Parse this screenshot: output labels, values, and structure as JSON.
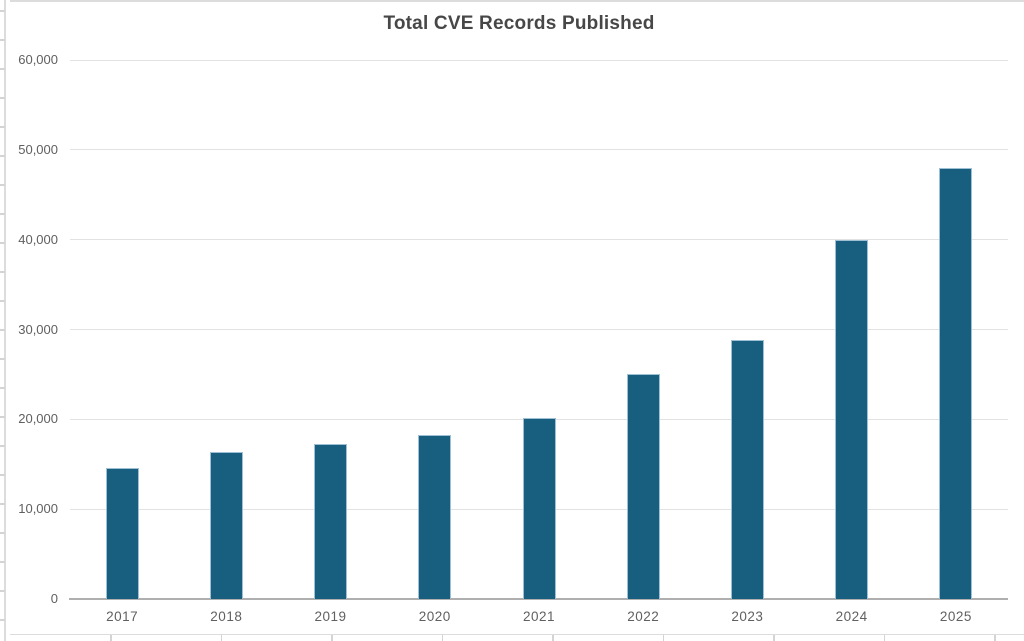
{
  "chart_data": {
    "type": "bar",
    "title": "Total CVE Records Published",
    "categories": [
      "2017",
      "2018",
      "2019",
      "2020",
      "2021",
      "2022",
      "2023",
      "2024",
      "2025"
    ],
    "values": [
      14600,
      16400,
      17300,
      18300,
      20100,
      25000,
      28800,
      40000,
      48000
    ],
    "xlabel": "",
    "ylabel": "",
    "ylim": [
      0,
      60000
    ],
    "ytick_interval": 10000,
    "ytick_labels": [
      "0",
      "10,000",
      "20,000",
      "30,000",
      "40,000",
      "50,000",
      "60,000"
    ],
    "grid": "horizontal",
    "legend_position": "none",
    "colors": {
      "bar_fill": "#185E7E",
      "bar_border": "#9DC0D5",
      "gridline": "#E2E2E2",
      "axis_line": "#AFAFAF",
      "tick_label": "#606060",
      "title": "#474747"
    }
  }
}
